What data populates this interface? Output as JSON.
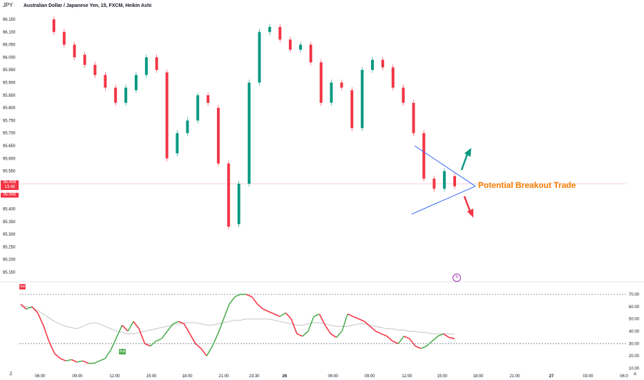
{
  "header": {
    "symbol": "JPY",
    "title": "Australian Dollar / Japanese Yen, 15, FXCM, Heikin Ashi"
  },
  "annotation": {
    "text": "Potential Breakout Trade",
    "color": "#f57c00"
  },
  "price_axis": {
    "ticks": [
      "96.150",
      "96.100",
      "96.050",
      "96.000",
      "95.950",
      "95.900",
      "95.850",
      "95.800",
      "95.750",
      "95.700",
      "95.650",
      "95.600",
      "95.550",
      "95.500",
      "95.450",
      "95.400",
      "95.350",
      "95.300",
      "95.250",
      "95.200",
      "95.150"
    ],
    "current_tag": [
      "95.499",
      "13:48",
      "95.490"
    ]
  },
  "indicator_axis": {
    "ticks": [
      "70.00",
      "60.00",
      "50.00",
      "40.00",
      "30.00",
      "20.00",
      "10.00"
    ]
  },
  "time_axis": {
    "ticks": [
      "06:00",
      "09:00",
      "12:00",
      "15:00",
      "18:00",
      "21:00",
      "23:30",
      "26",
      "06:00",
      "09:00",
      "12:00",
      "15:00",
      "18:00",
      "21:00",
      "27",
      "03:00",
      "06:0"
    ]
  },
  "labels": {
    "bull": "Bull",
    "sell": "Sel",
    "z": "Z",
    "a": "A"
  },
  "colors": {
    "up": "#089981",
    "down": "#f23645",
    "pattern_lines": "#2962ff",
    "arrow_up": "#089981",
    "arrow_down": "#f23645",
    "osc_bull": "#4caf50",
    "osc_bear": "#f23645"
  },
  "chart_data": {
    "type": "candlestick",
    "style": "Heikin Ashi",
    "interval": "15",
    "ylim": [
      95.12,
      96.18
    ],
    "current_price": 95.49,
    "candles": [
      {
        "x": "01:00",
        "o": 96.15,
        "c": 96.1
      },
      {
        "x": "02:00",
        "o": 96.1,
        "c": 96.05
      },
      {
        "x": "03:00",
        "o": 96.05,
        "c": 96.0
      },
      {
        "x": "04:00",
        "o": 96.01,
        "c": 95.97
      },
      {
        "x": "05:00",
        "o": 95.97,
        "c": 95.93
      },
      {
        "x": "06:00",
        "o": 95.93,
        "c": 95.88
      },
      {
        "x": "07:00",
        "o": 95.88,
        "c": 95.82
      },
      {
        "x": "08:00",
        "o": 95.82,
        "c": 95.88
      },
      {
        "x": "09:00",
        "o": 95.87,
        "c": 95.93
      },
      {
        "x": "10:00",
        "o": 95.93,
        "c": 96.0
      },
      {
        "x": "11:00",
        "o": 96.0,
        "c": 95.95
      },
      {
        "x": "12:00",
        "o": 95.94,
        "c": 95.6
      },
      {
        "x": "13:00",
        "o": 95.62,
        "c": 95.7
      },
      {
        "x": "14:00",
        "o": 95.7,
        "c": 95.75
      },
      {
        "x": "15:00",
        "o": 95.75,
        "c": 95.85
      },
      {
        "x": "16:00",
        "o": 95.85,
        "c": 95.82
      },
      {
        "x": "17:00",
        "o": 95.8,
        "c": 95.58
      },
      {
        "x": "18:00",
        "o": 95.58,
        "c": 95.33
      },
      {
        "x": "19:00",
        "o": 95.34,
        "c": 95.5
      },
      {
        "x": "20:00",
        "o": 95.5,
        "c": 95.9
      },
      {
        "x": "21:00",
        "o": 95.9,
        "c": 96.1
      },
      {
        "x": "22:00",
        "o": 96.1,
        "c": 96.12
      },
      {
        "x": "23:00",
        "o": 96.12,
        "c": 96.07
      },
      {
        "x": "23:30",
        "o": 96.07,
        "c": 96.03
      },
      {
        "x": "00:00",
        "o": 96.03,
        "c": 96.05
      },
      {
        "x": "02:00",
        "o": 96.05,
        "c": 95.98
      },
      {
        "x": "03:00",
        "o": 95.98,
        "c": 95.82
      },
      {
        "x": "04:00",
        "o": 95.82,
        "c": 95.9
      },
      {
        "x": "05:00",
        "o": 95.9,
        "c": 95.88
      },
      {
        "x": "06:00",
        "o": 95.87,
        "c": 95.72
      },
      {
        "x": "07:00",
        "o": 95.72,
        "c": 95.95
      },
      {
        "x": "08:00",
        "o": 95.95,
        "c": 95.99
      },
      {
        "x": "09:00",
        "o": 95.99,
        "c": 95.96
      },
      {
        "x": "10:00",
        "o": 95.96,
        "c": 95.88
      },
      {
        "x": "11:00",
        "o": 95.88,
        "c": 95.82
      },
      {
        "x": "12:00",
        "o": 95.82,
        "c": 95.7
      },
      {
        "x": "13:00",
        "o": 95.7,
        "c": 95.52
      },
      {
        "x": "14:00",
        "o": 95.52,
        "c": 95.48
      },
      {
        "x": "15:00",
        "o": 95.48,
        "c": 95.55
      },
      {
        "x": "15:45",
        "o": 95.53,
        "c": 95.49
      }
    ],
    "pattern": {
      "type": "symmetrical triangle",
      "upper_from": [
        "12:30",
        95.65
      ],
      "lower_from": [
        "12:30",
        95.38
      ],
      "apex": [
        "17:00",
        95.49
      ]
    },
    "oscillator": {
      "ylim": [
        10,
        75
      ],
      "levels": [
        70,
        30
      ],
      "ticks": [
        70,
        60,
        50,
        40,
        30,
        20,
        10
      ],
      "main_line": [
        62,
        58,
        60,
        55,
        45,
        32,
        22,
        18,
        16,
        17,
        15,
        16,
        14,
        14,
        16,
        18,
        25,
        35,
        45,
        40,
        48,
        42,
        30,
        28,
        32,
        34,
        40,
        46,
        48,
        46,
        38,
        30,
        26,
        20,
        28,
        38,
        50,
        62,
        68,
        70,
        70,
        68,
        62,
        58,
        56,
        54,
        52,
        55,
        50,
        38,
        36,
        40,
        52,
        54,
        45,
        38,
        35,
        40,
        54,
        52,
        50,
        48,
        44,
        40,
        38,
        36,
        32,
        30,
        36,
        34,
        28,
        26,
        28,
        32,
        36,
        38,
        35,
        34
      ],
      "signal_line": [
        60,
        60,
        59,
        57,
        54,
        51,
        48,
        46,
        44,
        43,
        42,
        44,
        46,
        47,
        46,
        44,
        42,
        40,
        39,
        38,
        38,
        39,
        40,
        41,
        42,
        43,
        44,
        45,
        46,
        47,
        47,
        47,
        46,
        45,
        45,
        46,
        47,
        48,
        49,
        49,
        50,
        50,
        50,
        50,
        50,
        49,
        48,
        47,
        46,
        45,
        45,
        46,
        47,
        47,
        46,
        45,
        44,
        44,
        44,
        45,
        46,
        46,
        45,
        44,
        43,
        42,
        42,
        41,
        41,
        40,
        40,
        39,
        39,
        38,
        38,
        38,
        38,
        38
      ]
    }
  }
}
